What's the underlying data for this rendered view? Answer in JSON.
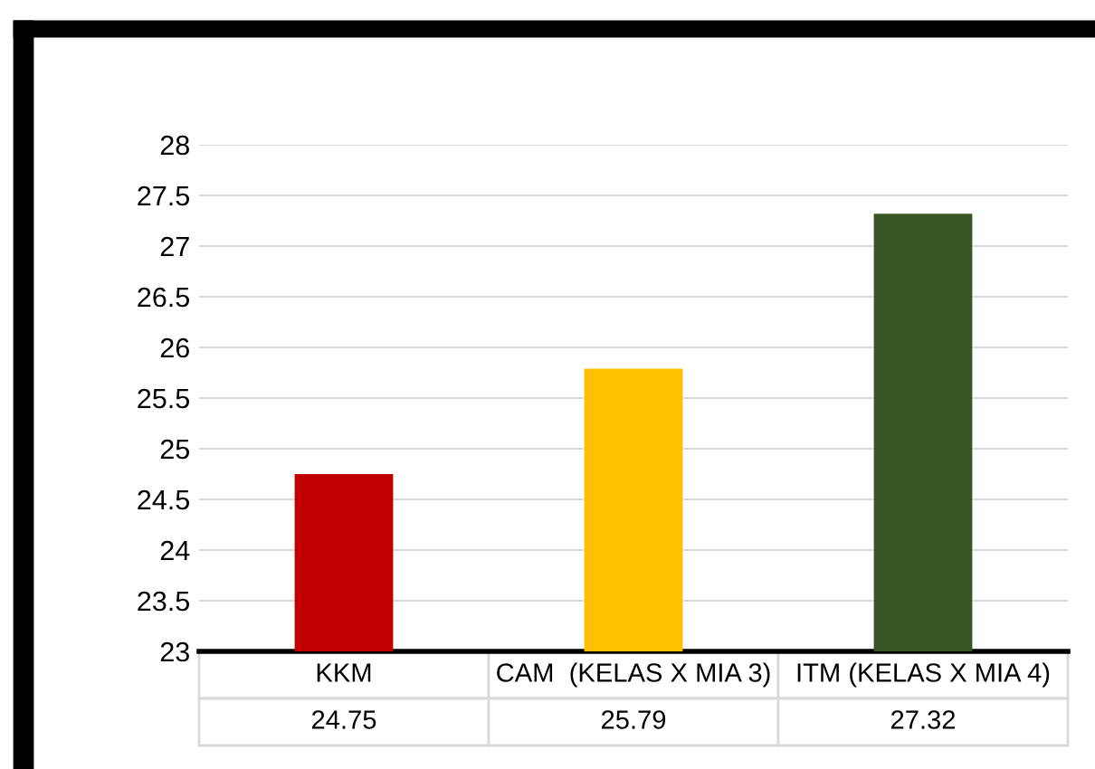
{
  "chart_data": {
    "type": "bar",
    "categories": [
      "KKM",
      "CAM  (KELAS X MIA 3)",
      "ITM (KELAS X MIA 4)"
    ],
    "values": [
      24.75,
      25.79,
      27.32
    ],
    "colors": [
      "#c00000",
      "#ffc000",
      "#375623"
    ],
    "ylim": [
      23,
      28
    ],
    "yticks": [
      23,
      23.5,
      24,
      24.5,
      25,
      25.5,
      26,
      26.5,
      27,
      27.5,
      28
    ],
    "grid": "y",
    "data_labels": true
  }
}
